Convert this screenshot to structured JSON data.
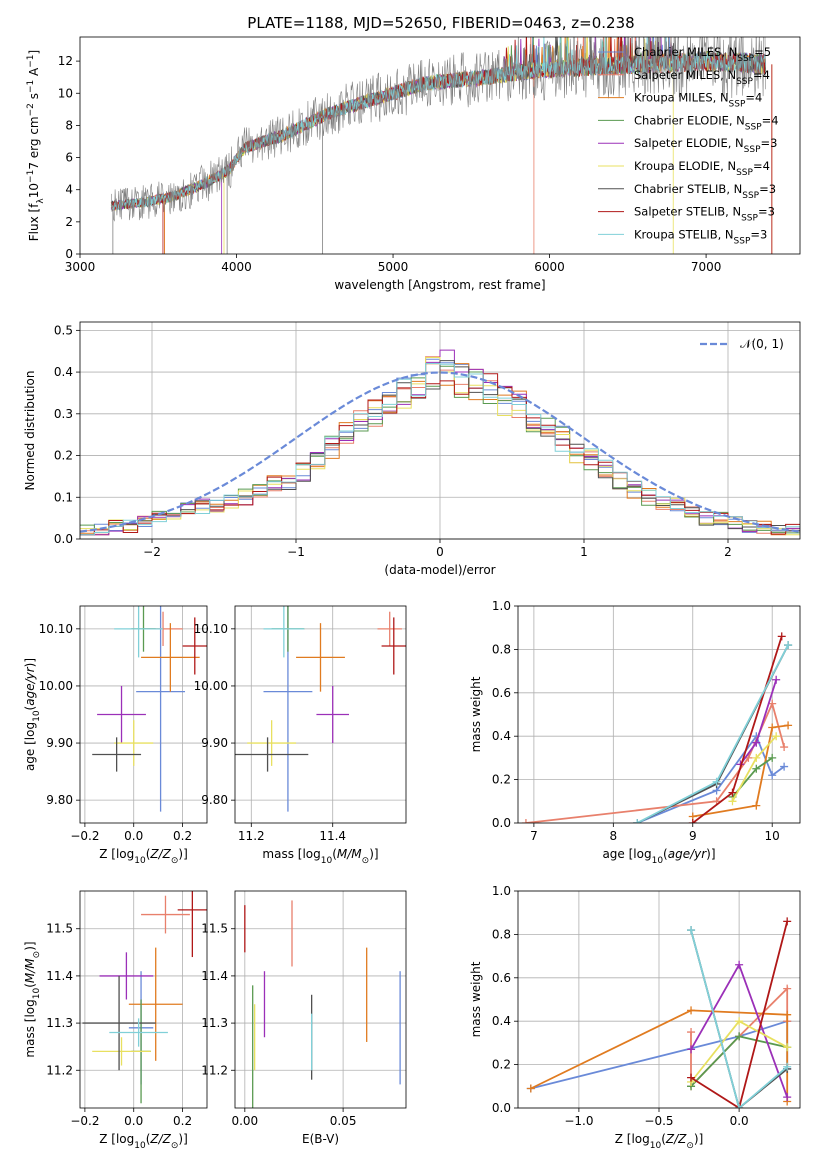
{
  "figure_title": "PLATE=1188, MJD=52650, FIBERID=0463, z=0.238",
  "colors": {
    "Chabrier MILES": "#6a8ad8",
    "Salpeter MILES": "#e8806c",
    "Kroupa MILES": "#e07b20",
    "Chabrier ELODIE": "#5a9a50",
    "Salpeter ELODIE": "#9b30b8",
    "Kroupa ELODIE": "#e8e060",
    "Chabrier STELIB": "#505050",
    "Salpeter STELIB": "#b01818",
    "Kroupa STELIB": "#80d0d8",
    "spectrum": "#808080",
    "normal": "#6a8ad8"
  },
  "chart_data": [
    {
      "id": "spectrum",
      "type": "line",
      "xlabel": "wavelength [Angstrom, rest frame]",
      "ylabel": "Flux [f_λ10^-17 erg cm^-2 s^-1 A^-1]",
      "xlim": [
        3000,
        7600
      ],
      "ylim": [
        0,
        13.5
      ],
      "xticks": [
        3000,
        4000,
        5000,
        6000,
        7000
      ],
      "yticks": [
        0,
        2,
        4,
        6,
        8,
        10,
        12
      ],
      "legend_position": "right",
      "legend": [
        {
          "label": "Chabrier MILES, N",
          "sub": "SSP",
          "tail": "=5"
        },
        {
          "label": "Salpeter MILES, N",
          "sub": "SSP",
          "tail": "=4"
        },
        {
          "label": "Kroupa MILES, N",
          "sub": "SSP",
          "tail": "=4"
        },
        {
          "label": "Chabrier ELODIE, N",
          "sub": "SSP",
          "tail": "=4"
        },
        {
          "label": "Salpeter ELODIE, N",
          "sub": "SSP",
          "tail": "=3"
        },
        {
          "label": "Kroupa ELODIE, N",
          "sub": "SSP",
          "tail": "=4"
        },
        {
          "label": "Chabrier STELIB, N",
          "sub": "SSP",
          "tail": "=3"
        },
        {
          "label": "Salpeter STELIB, N",
          "sub": "SSP",
          "tail": "=3"
        },
        {
          "label": "Kroupa STELIB, N",
          "sub": "SSP",
          "tail": "=3"
        }
      ],
      "continuum": {
        "x": [
          3200,
          3400,
          3600,
          3800,
          3950,
          4050,
          4300,
          4600,
          4800,
          5000,
          5200,
          5400,
          5600,
          5800,
          6000,
          6200,
          6400,
          6600,
          6800,
          7000,
          7200,
          7380
        ],
        "y": [
          3.0,
          3.2,
          3.6,
          4.4,
          5.2,
          6.6,
          7.4,
          8.8,
          9.4,
          10.0,
          10.6,
          10.8,
          11.0,
          11.3,
          11.5,
          11.6,
          11.7,
          11.8,
          11.9,
          12.0,
          11.9,
          11.8
        ]
      }
    },
    {
      "id": "residuals",
      "type": "histogram",
      "xlabel": "(data-model)/error",
      "ylabel": "Normed distribution",
      "xlim": [
        -2.5,
        2.5
      ],
      "ylim": [
        0,
        0.52
      ],
      "xticks": [
        -2,
        -1,
        0,
        1,
        2
      ],
      "yticks": [
        0.0,
        0.1,
        0.2,
        0.3,
        0.4,
        0.5
      ],
      "grid": true,
      "legend_position": "upper right",
      "normal_label": "𝒩(0, 1)",
      "bin_edges_range": [
        -2.5,
        2.5
      ],
      "bin_width": 0.1,
      "reference_values": [
        0.02,
        0.02,
        0.03,
        0.03,
        0.04,
        0.05,
        0.06,
        0.07,
        0.08,
        0.08,
        0.09,
        0.1,
        0.12,
        0.13,
        0.14,
        0.16,
        0.19,
        0.22,
        0.26,
        0.28,
        0.3,
        0.33,
        0.35,
        0.37,
        0.4,
        0.41,
        0.38,
        0.37,
        0.36,
        0.33,
        0.32,
        0.28,
        0.26,
        0.24,
        0.21,
        0.19,
        0.17,
        0.14,
        0.12,
        0.1,
        0.09,
        0.08,
        0.06,
        0.05,
        0.05,
        0.04,
        0.03,
        0.03,
        0.02,
        0.02
      ]
    },
    {
      "id": "age_vs_Z",
      "type": "errorbar",
      "xlabel": "Z [log10(Z/Z☉)]",
      "ylabel": "age [log10(age/yr)]",
      "xlim": [
        -0.22,
        0.3
      ],
      "ylim": [
        9.76,
        10.14
      ],
      "xticks": [
        -0.2,
        0.0,
        0.2
      ],
      "yticks": [
        9.8,
        9.9,
        10.0,
        10.1
      ],
      "grid": true,
      "points": [
        {
          "model": "Chabrier MILES",
          "x": 0.11,
          "y": 9.99,
          "xerr": 0.1,
          "yerr": 0.21
        },
        {
          "model": "Salpeter MILES",
          "x": 0.12,
          "y": 10.1,
          "xerr": 0.08,
          "yerr": 0.03
        },
        {
          "model": "Kroupa MILES",
          "x": 0.15,
          "y": 10.05,
          "xerr": 0.12,
          "yerr": 0.06
        },
        {
          "model": "Chabrier ELODIE",
          "x": 0.04,
          "y": 10.1,
          "xerr": 0.05,
          "yerr": 0.04
        },
        {
          "model": "Salpeter ELODIE",
          "x": -0.05,
          "y": 9.95,
          "xerr": 0.1,
          "yerr": 0.05
        },
        {
          "model": "Kroupa ELODIE",
          "x": 0.0,
          "y": 9.9,
          "xerr": 0.08,
          "yerr": 0.04
        },
        {
          "model": "Chabrier STELIB",
          "x": -0.07,
          "y": 9.88,
          "xerr": 0.1,
          "yerr": 0.03
        },
        {
          "model": "Salpeter STELIB",
          "x": 0.25,
          "y": 10.07,
          "xerr": 0.05,
          "yerr": 0.05
        },
        {
          "model": "Kroupa STELIB",
          "x": 0.02,
          "y": 10.1,
          "xerr": 0.1,
          "yerr": 0.05
        }
      ]
    },
    {
      "id": "age_vs_mass",
      "type": "errorbar",
      "xlabel": "mass [log10(M/M☉)]",
      "ylabel": "",
      "xlim": [
        11.16,
        11.58
      ],
      "ylim": [
        9.76,
        10.14
      ],
      "xticks": [
        11.2,
        11.4
      ],
      "yticks": [
        9.8,
        9.9,
        10.0,
        10.1
      ],
      "grid": true,
      "points": [
        {
          "model": "Chabrier MILES",
          "x": 11.29,
          "y": 9.99,
          "xerr": 0.06,
          "yerr": 0.21
        },
        {
          "model": "Salpeter MILES",
          "x": 11.54,
          "y": 10.1,
          "xerr": 0.03,
          "yerr": 0.03
        },
        {
          "model": "Kroupa MILES",
          "x": 11.37,
          "y": 10.05,
          "xerr": 0.06,
          "yerr": 0.06
        },
        {
          "model": "Chabrier ELODIE",
          "x": 11.29,
          "y": 10.1,
          "xerr": 0.04,
          "yerr": 0.04
        },
        {
          "model": "Salpeter ELODIE",
          "x": 11.4,
          "y": 9.95,
          "xerr": 0.04,
          "yerr": 0.05
        },
        {
          "model": "Kroupa ELODIE",
          "x": 11.25,
          "y": 9.9,
          "xerr": 0.06,
          "yerr": 0.04
        },
        {
          "model": "Chabrier STELIB",
          "x": 11.24,
          "y": 9.88,
          "xerr": 0.1,
          "yerr": 0.03
        },
        {
          "model": "Salpeter STELIB",
          "x": 11.55,
          "y": 10.07,
          "xerr": 0.03,
          "yerr": 0.05
        },
        {
          "model": "Kroupa STELIB",
          "x": 11.28,
          "y": 10.1,
          "xerr": 0.05,
          "yerr": 0.05
        }
      ]
    },
    {
      "id": "weight_vs_age",
      "type": "line",
      "xlabel": "age [log10(age/yr)]",
      "ylabel": "mass weight",
      "xlim": [
        6.8,
        10.35
      ],
      "ylim": [
        0,
        1
      ],
      "xticks": [
        7,
        8,
        9,
        10
      ],
      "yticks": [
        0.0,
        0.2,
        0.4,
        0.6,
        0.8,
        1.0
      ],
      "grid": true,
      "series": [
        {
          "model": "Chabrier MILES",
          "x": [
            8.3,
            9.3,
            9.8,
            10.0,
            10.15
          ],
          "y": [
            0.0,
            0.15,
            0.4,
            0.22,
            0.26
          ]
        },
        {
          "model": "Salpeter MILES",
          "x": [
            6.9,
            9.3,
            9.7,
            10.0,
            10.15
          ],
          "y": [
            0.0,
            0.1,
            0.3,
            0.55,
            0.35
          ]
        },
        {
          "model": "Kroupa MILES",
          "x": [
            9.0,
            9.8,
            10.0,
            10.2
          ],
          "y": [
            0.03,
            0.08,
            0.44,
            0.45
          ]
        },
        {
          "model": "Chabrier ELODIE",
          "x": [
            9.5,
            9.8,
            10.0
          ],
          "y": [
            0.12,
            0.25,
            0.3
          ]
        },
        {
          "model": "Salpeter ELODIE",
          "x": [
            9.6,
            9.8,
            10.05
          ],
          "y": [
            0.27,
            0.37,
            0.66
          ]
        },
        {
          "model": "Kroupa ELODIE",
          "x": [
            9.5,
            9.8,
            10.05
          ],
          "y": [
            0.1,
            0.3,
            0.4
          ]
        },
        {
          "model": "Chabrier STELIB",
          "x": [
            8.3,
            9.3,
            10.2
          ],
          "y": [
            0.0,
            0.18,
            0.82
          ]
        },
        {
          "model": "Salpeter STELIB",
          "x": [
            9.0,
            9.5,
            10.12
          ],
          "y": [
            0.0,
            0.14,
            0.86
          ]
        },
        {
          "model": "Kroupa STELIB",
          "x": [
            8.3,
            9.3,
            10.2
          ],
          "y": [
            0.0,
            0.19,
            0.82
          ]
        }
      ]
    },
    {
      "id": "mass_vs_Z",
      "type": "errorbar",
      "xlabel": "Z [log10(Z/Z☉)]",
      "ylabel": "mass [log10(M/M☉)]",
      "xlim": [
        -0.22,
        0.3
      ],
      "ylim": [
        11.12,
        11.58
      ],
      "xticks": [
        -0.2,
        0.0,
        0.2
      ],
      "yticks": [
        11.2,
        11.3,
        11.4,
        11.5
      ],
      "grid": true,
      "points": [
        {
          "model": "Chabrier MILES",
          "x": 0.03,
          "y": 11.29,
          "xerr": 0.05,
          "yerr": 0.12
        },
        {
          "model": "Salpeter MILES",
          "x": 0.13,
          "y": 11.53,
          "xerr": 0.1,
          "yerr": 0.04
        },
        {
          "model": "Kroupa MILES",
          "x": 0.09,
          "y": 11.34,
          "xerr": 0.11,
          "yerr": 0.12
        },
        {
          "model": "Chabrier ELODIE",
          "x": 0.03,
          "y": 11.24,
          "xerr": 0.04,
          "yerr": 0.11
        },
        {
          "model": "Salpeter ELODIE",
          "x": -0.03,
          "y": 11.4,
          "xerr": 0.11,
          "yerr": 0.05
        },
        {
          "model": "Kroupa ELODIE",
          "x": -0.05,
          "y": 11.24,
          "xerr": 0.12,
          "yerr": 0.03
        },
        {
          "model": "Chabrier STELIB",
          "x": -0.06,
          "y": 11.3,
          "xerr": 0.15,
          "yerr": 0.1
        },
        {
          "model": "Salpeter STELIB",
          "x": 0.24,
          "y": 11.54,
          "xerr": 0.06,
          "yerr": 0.1
        },
        {
          "model": "Kroupa STELIB",
          "x": 0.02,
          "y": 11.28,
          "xerr": 0.12,
          "yerr": 0.03
        }
      ]
    },
    {
      "id": "mass_vs_ebv",
      "type": "errorbar",
      "xlabel": "E(B-V)",
      "ylabel": "",
      "xlim": [
        -0.005,
        0.082
      ],
      "ylim": [
        11.12,
        11.58
      ],
      "xticks": [
        0.0,
        0.05
      ],
      "yticks": [
        11.2,
        11.3,
        11.4,
        11.5
      ],
      "grid": true,
      "points": [
        {
          "model": "Chabrier MILES",
          "x": 0.079,
          "y": 11.29,
          "xerr": 0,
          "yerr": 0.12
        },
        {
          "model": "Salpeter MILES",
          "x": 0.024,
          "y": 11.49,
          "xerr": 0,
          "yerr": 0.07
        },
        {
          "model": "Kroupa MILES",
          "x": 0.062,
          "y": 11.36,
          "xerr": 0,
          "yerr": 0.1
        },
        {
          "model": "Chabrier ELODIE",
          "x": 0.004,
          "y": 11.25,
          "xerr": 0,
          "yerr": 0.13
        },
        {
          "model": "Salpeter ELODIE",
          "x": 0.01,
          "y": 11.34,
          "xerr": 0,
          "yerr": 0.07
        },
        {
          "model": "Kroupa ELODIE",
          "x": 0.005,
          "y": 11.27,
          "xerr": 0,
          "yerr": 0.07
        },
        {
          "model": "Chabrier STELIB",
          "x": 0.034,
          "y": 11.27,
          "xerr": 0,
          "yerr": 0.09
        },
        {
          "model": "Salpeter STELIB",
          "x": 0.0,
          "y": 11.5,
          "xerr": 0,
          "yerr": 0.05
        },
        {
          "model": "Kroupa STELIB",
          "x": 0.034,
          "y": 11.26,
          "xerr": 0,
          "yerr": 0.06
        }
      ]
    },
    {
      "id": "weight_vs_Z",
      "type": "line",
      "xlabel": "Z [log10(Z/Z☉)]",
      "ylabel": "mass weight",
      "xlim": [
        -1.38,
        0.38
      ],
      "ylim": [
        0,
        1
      ],
      "xticks": [
        -1.0,
        -0.5,
        0.0
      ],
      "yticks": [
        0.0,
        0.2,
        0.4,
        0.6,
        0.8,
        1.0
      ],
      "grid": true,
      "series": [
        {
          "model": "Chabrier MILES",
          "x": [
            -1.3,
            0.0,
            0.3,
            0.3
          ],
          "y": [
            0.09,
            0.33,
            0.4,
            0.18
          ]
        },
        {
          "model": "Salpeter MILES",
          "x": [
            -0.3,
            -0.3,
            0.0,
            0.3,
            0.3
          ],
          "y": [
            0.35,
            0.1,
            0.33,
            0.55,
            0.4
          ]
        },
        {
          "model": "Kroupa MILES",
          "x": [
            -1.3,
            -0.3,
            0.3,
            0.3
          ],
          "y": [
            0.09,
            0.45,
            0.43,
            0.03
          ]
        },
        {
          "model": "Chabrier ELODIE",
          "x": [
            -0.3,
            0.0,
            0.3
          ],
          "y": [
            0.1,
            0.33,
            0.28
          ]
        },
        {
          "model": "Salpeter ELODIE",
          "x": [
            -0.3,
            0.0,
            0.3
          ],
          "y": [
            0.27,
            0.66,
            0.05
          ]
        },
        {
          "model": "Kroupa ELODIE",
          "x": [
            -0.3,
            0.0,
            0.3
          ],
          "y": [
            0.12,
            0.4,
            0.28
          ]
        },
        {
          "model": "Chabrier STELIB",
          "x": [
            -0.3,
            0.0,
            0.3
          ],
          "y": [
            0.82,
            0.0,
            0.18
          ]
        },
        {
          "model": "Salpeter STELIB",
          "x": [
            -0.3,
            0.0,
            0.3
          ],
          "y": [
            0.14,
            0.0,
            0.86
          ]
        },
        {
          "model": "Kroupa STELIB",
          "x": [
            -0.3,
            0.0,
            0.3
          ],
          "y": [
            0.82,
            0.0,
            0.19
          ]
        }
      ]
    }
  ]
}
